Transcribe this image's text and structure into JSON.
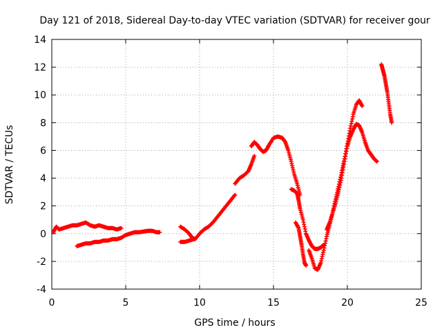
{
  "chart_data": {
    "type": "scatter",
    "title": "Day 121 of 2018, Sidereal Day-to-day VTEC variation (SDTVAR) for receiver gour",
    "xlabel": "GPS time / hours",
    "ylabel": "SDTVAR / TECUs",
    "xlim": [
      0,
      25
    ],
    "ylim": [
      -4,
      14
    ],
    "xticks": [
      0,
      5,
      10,
      15,
      20,
      25
    ],
    "yticks": [
      -4,
      -2,
      0,
      2,
      4,
      6,
      8,
      10,
      12,
      14
    ],
    "xtick_labels": [
      "0",
      "5",
      "10",
      "15",
      "20",
      "25"
    ],
    "ytick_labels": [
      "-4",
      "-2",
      "0",
      "2",
      "4",
      "6",
      "8",
      "10",
      "12",
      "14"
    ],
    "grid": true,
    "marker": "+",
    "series_color": "#ff0000",
    "segments": [
      [
        [
          0.1,
          0.1
        ],
        [
          0.3,
          0.5
        ],
        [
          0.5,
          0.3
        ],
        [
          0.8,
          0.4
        ],
        [
          1.1,
          0.5
        ],
        [
          1.4,
          0.6
        ],
        [
          1.7,
          0.6
        ],
        [
          2.0,
          0.7
        ],
        [
          2.3,
          0.8
        ],
        [
          2.6,
          0.6
        ],
        [
          2.9,
          0.5
        ],
        [
          3.2,
          0.6
        ],
        [
          3.5,
          0.5
        ],
        [
          3.8,
          0.4
        ],
        [
          4.1,
          0.4
        ],
        [
          4.4,
          0.3
        ],
        [
          4.7,
          0.4
        ]
      ],
      [
        [
          1.7,
          -0.9
        ],
        [
          2.0,
          -0.8
        ],
        [
          2.3,
          -0.7
        ],
        [
          2.6,
          -0.7
        ],
        [
          2.9,
          -0.6
        ],
        [
          3.2,
          -0.6
        ],
        [
          3.5,
          -0.5
        ],
        [
          3.8,
          -0.5
        ],
        [
          4.1,
          -0.4
        ],
        [
          4.4,
          -0.4
        ],
        [
          4.7,
          -0.3
        ],
        [
          5.0,
          -0.1
        ],
        [
          5.3,
          0.0
        ],
        [
          5.6,
          0.1
        ],
        [
          5.9,
          0.1
        ],
        [
          6.2,
          0.15
        ],
        [
          6.5,
          0.2
        ],
        [
          6.8,
          0.2
        ],
        [
          7.1,
          0.1
        ],
        [
          7.3,
          0.1
        ]
      ],
      [
        [
          8.7,
          0.5
        ],
        [
          9.0,
          0.3
        ],
        [
          9.3,
          0.0
        ],
        [
          9.5,
          -0.3
        ],
        [
          9.7,
          -0.4
        ],
        [
          10.0,
          0.0
        ],
        [
          10.3,
          0.3
        ],
        [
          10.6,
          0.5
        ],
        [
          10.9,
          0.8
        ],
        [
          11.2,
          1.2
        ],
        [
          11.5,
          1.6
        ],
        [
          11.8,
          2.0
        ],
        [
          12.1,
          2.4
        ],
        [
          12.4,
          2.8
        ]
      ],
      [
        [
          8.7,
          -0.6
        ],
        [
          9.0,
          -0.6
        ],
        [
          9.3,
          -0.5
        ],
        [
          9.6,
          -0.4
        ]
      ],
      [
        [
          12.4,
          3.6
        ],
        [
          12.7,
          4.0
        ],
        [
          13.0,
          4.2
        ],
        [
          13.3,
          4.5
        ],
        [
          13.5,
          5.0
        ],
        [
          13.7,
          5.6
        ]
      ],
      [
        [
          13.5,
          6.3
        ],
        [
          13.7,
          6.6
        ],
        [
          13.9,
          6.4
        ],
        [
          14.1,
          6.1
        ],
        [
          14.3,
          5.9
        ],
        [
          14.5,
          6.0
        ],
        [
          14.7,
          6.4
        ],
        [
          15.0,
          6.9
        ],
        [
          15.3,
          7.0
        ],
        [
          15.6,
          6.9
        ],
        [
          15.8,
          6.6
        ],
        [
          16.0,
          6.0
        ],
        [
          16.2,
          5.2
        ],
        [
          16.4,
          4.3
        ],
        [
          16.6,
          3.6
        ],
        [
          16.8,
          2.8
        ]
      ],
      [
        [
          16.2,
          3.2
        ],
        [
          16.4,
          3.1
        ],
        [
          16.6,
          2.9
        ],
        [
          16.7,
          2.4
        ],
        [
          16.8,
          1.8
        ],
        [
          17.0,
          1.0
        ],
        [
          17.2,
          0.0
        ],
        [
          17.4,
          -0.5
        ],
        [
          17.6,
          -0.9
        ],
        [
          17.8,
          -1.1
        ],
        [
          18.0,
          -1.1
        ],
        [
          18.2,
          -1.0
        ],
        [
          18.4,
          -0.8
        ]
      ],
      [
        [
          16.5,
          0.8
        ],
        [
          16.7,
          0.4
        ],
        [
          16.8,
          -0.2
        ],
        [
          16.9,
          -0.8
        ],
        [
          17.0,
          -1.5
        ],
        [
          17.1,
          -2.1
        ],
        [
          17.2,
          -2.3
        ]
      ],
      [
        [
          17.4,
          -1.2
        ],
        [
          17.6,
          -1.8
        ],
        [
          17.8,
          -2.5
        ],
        [
          18.0,
          -2.6
        ],
        [
          18.2,
          -2.1
        ],
        [
          18.4,
          -1.2
        ],
        [
          18.6,
          -0.2
        ],
        [
          18.8,
          0.6
        ],
        [
          19.0,
          1.5
        ],
        [
          19.2,
          2.5
        ],
        [
          19.4,
          3.4
        ],
        [
          19.6,
          4.4
        ],
        [
          19.8,
          5.4
        ],
        [
          20.0,
          6.5
        ],
        [
          20.2,
          7.6
        ],
        [
          20.4,
          8.6
        ],
        [
          20.6,
          9.3
        ],
        [
          20.8,
          9.6
        ],
        [
          21.0,
          9.2
        ]
      ],
      [
        [
          18.6,
          0.3
        ],
        [
          18.8,
          0.8
        ],
        [
          19.0,
          1.5
        ],
        [
          19.2,
          2.2
        ],
        [
          19.4,
          3.0
        ],
        [
          19.6,
          4.0
        ],
        [
          19.8,
          5.2
        ],
        [
          20.0,
          6.3
        ],
        [
          20.2,
          7.0
        ],
        [
          20.4,
          7.5
        ],
        [
          20.6,
          7.9
        ],
        [
          20.8,
          7.8
        ],
        [
          21.0,
          7.3
        ],
        [
          21.2,
          6.6
        ],
        [
          21.4,
          6.0
        ],
        [
          21.6,
          5.7
        ],
        [
          21.8,
          5.4
        ],
        [
          22.0,
          5.2
        ]
      ],
      [
        [
          22.3,
          12.2
        ],
        [
          22.4,
          11.8
        ],
        [
          22.5,
          11.4
        ],
        [
          22.6,
          10.8
        ],
        [
          22.7,
          10.2
        ],
        [
          22.8,
          9.4
        ],
        [
          22.9,
          8.6
        ],
        [
          23.0,
          8.0
        ]
      ]
    ]
  }
}
